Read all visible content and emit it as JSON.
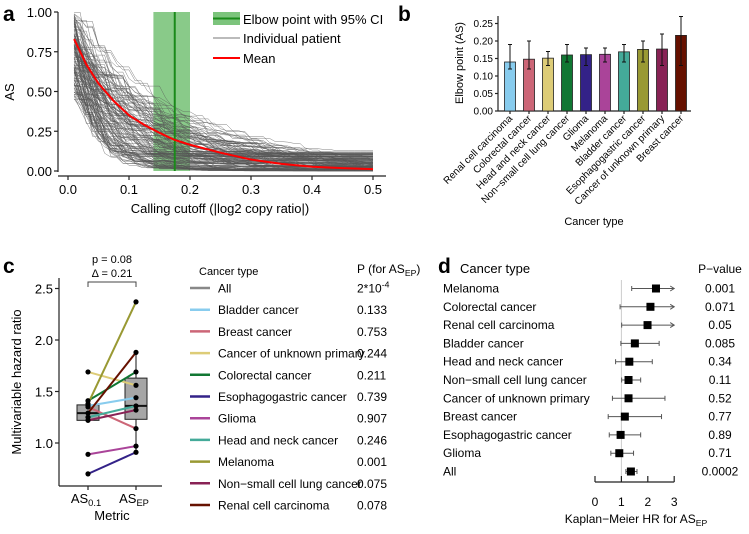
{
  "chart_data": [
    {
      "panel": "a",
      "type": "line",
      "ylabel": "AS",
      "xlabel": "Calling cutoff (|log2 copy ratio|)",
      "xlim": [
        0,
        0.5
      ],
      "ylim": [
        0,
        1
      ],
      "xticks": [
        "0.0",
        "0.1",
        "0.2",
        "0.3",
        "0.4",
        "0.5"
      ],
      "yticks": [
        "0.00",
        "0.25",
        "0.50",
        "0.75",
        "1.00"
      ],
      "legend": [
        "Elbow point with 95% CI",
        "Individual patient",
        "Mean"
      ],
      "legend_position": "top-right",
      "elbow": {
        "value": 0.175,
        "ci": [
          0.14,
          0.2
        ]
      },
      "mean": {
        "x": [
          0.01,
          0.03,
          0.05,
          0.075,
          0.1,
          0.125,
          0.15,
          0.175,
          0.2,
          0.25,
          0.3,
          0.35,
          0.4,
          0.45,
          0.5
        ],
        "y": [
          0.83,
          0.67,
          0.55,
          0.44,
          0.35,
          0.29,
          0.24,
          0.195,
          0.165,
          0.115,
          0.072,
          0.045,
          0.027,
          0.018,
          0.012
        ]
      },
      "colors": {
        "elbow": "#1a8a1a",
        "ci": "#7cc47c",
        "individual": "#555555",
        "mean": "#ff0000"
      }
    },
    {
      "panel": "b",
      "type": "bar",
      "ylabel": "Elbow point (AS)",
      "xlabel": "Cancer type",
      "ylim": [
        0,
        0.27
      ],
      "yticks": [
        "0.00",
        "0.05",
        "0.10",
        "0.15",
        "0.20",
        "0.25"
      ],
      "categories": [
        "Renal cell carcinoma",
        "Colorectal cancer",
        "Head and neck cancer",
        "Non−small cell lung cancer",
        "Glioma",
        "Melanoma",
        "Bladder cancer",
        "Esophagogastric cancer",
        "Cancer of unknown primary",
        "Breast cancer"
      ],
      "values": [
        0.14,
        0.148,
        0.151,
        0.16,
        0.161,
        0.162,
        0.169,
        0.176,
        0.177,
        0.216
      ],
      "err_low": [
        0.12,
        0.12,
        0.13,
        0.14,
        0.13,
        0.14,
        0.14,
        0.14,
        0.13,
        0.13
      ],
      "err_high": [
        0.19,
        0.2,
        0.17,
        0.19,
        0.18,
        0.18,
        0.19,
        0.2,
        0.22,
        0.27
      ],
      "colors": [
        "#88ccee",
        "#cc6677",
        "#ddcc77",
        "#117733",
        "#332288",
        "#aa4499",
        "#44aa99",
        "#999933",
        "#882255",
        "#661100"
      ]
    },
    {
      "panel": "c",
      "type": "box-paired",
      "ylabel": "Multivariable hazard ratio",
      "xlabel": "Metric",
      "categories": [
        {
          "base": "AS",
          "sub": "0.1"
        },
        {
          "base": "AS",
          "sub": "EP"
        }
      ],
      "ylim": [
        0.62,
        2.62
      ],
      "yticks": [
        "1.0",
        "1.5",
        "2.0",
        "2.5"
      ],
      "annotation": {
        "p": "p = 0.08",
        "delta": "Δ = 0.21"
      },
      "boxes": [
        {
          "median": 1.29,
          "q1": 1.22,
          "q3": 1.37,
          "whisker": [
            1.22,
            1.41
          ]
        },
        {
          "median": 1.36,
          "q1": 1.23,
          "q3": 1.63,
          "whisker": [
            0.91,
            1.88
          ]
        }
      ],
      "legend_title": "Cancer type",
      "p_header": {
        "base": "P (for AS",
        "sub": "EP",
        "close": ")"
      },
      "series": [
        {
          "name": "All",
          "color": "#888888",
          "values": [
            1.29,
            1.36
          ],
          "p": "2*10",
          "p_sup": "-4"
        },
        {
          "name": "Bladder cancer",
          "color": "#88ccee",
          "values": [
            1.36,
            1.44
          ],
          "p": "0.133"
        },
        {
          "name": "Breast cancer",
          "color": "#cc6677",
          "values": [
            1.35,
            1.14
          ],
          "p": "0.753"
        },
        {
          "name": "Cancer of unknown primary",
          "color": "#ddcc77",
          "values": [
            1.69,
            1.56
          ],
          "p": "0.244"
        },
        {
          "name": "Colorectal cancer",
          "color": "#117733",
          "values": [
            1.41,
            1.69
          ],
          "p": "0.211"
        },
        {
          "name": "Esophagogastric cancer",
          "color": "#332288",
          "values": [
            0.7,
            0.91
          ],
          "p": "0.739"
        },
        {
          "name": "Glioma",
          "color": "#aa4499",
          "values": [
            0.89,
            0.97
          ],
          "p": "0.907"
        },
        {
          "name": "Head and neck cancer",
          "color": "#44aa99",
          "values": [
            1.25,
            1.36
          ],
          "p": "0.246"
        },
        {
          "name": "Melanoma",
          "color": "#999933",
          "values": [
            1.38,
            2.37
          ],
          "p": "0.001"
        },
        {
          "name": "Non−small cell lung cancer",
          "color": "#882255",
          "values": [
            1.22,
            1.32
          ],
          "p": "0.075"
        },
        {
          "name": "Renal cell carcinoma",
          "color": "#661100",
          "values": [
            1.29,
            1.88
          ],
          "p": "0.078"
        }
      ]
    },
    {
      "panel": "d",
      "type": "forest",
      "title": "Cancer type",
      "p_title": "P−value",
      "xlabel": {
        "base": "Kaplan−Meier HR for AS",
        "sub": "EP"
      },
      "xlim": [
        0,
        3
      ],
      "xticks": [
        "0",
        "1",
        "2",
        "3"
      ],
      "rows": [
        {
          "name": "Melanoma",
          "hr": 2.31,
          "lo": 1.39,
          "hi": 3,
          "arrow": true,
          "p": "0.001"
        },
        {
          "name": "Colorectal cancer",
          "hr": 2.1,
          "lo": 0.95,
          "hi": 3,
          "arrow": true,
          "p": "0.071"
        },
        {
          "name": "Renal cell carcinoma",
          "hr": 1.99,
          "lo": 1.01,
          "hi": 3,
          "arrow": true,
          "p": "0.05"
        },
        {
          "name": "Bladder cancer",
          "hr": 1.51,
          "lo": 0.98,
          "hi": 2.43,
          "p": "0.085"
        },
        {
          "name": "Head and neck cancer",
          "hr": 1.3,
          "lo": 0.78,
          "hi": 2.17,
          "p": "0.34"
        },
        {
          "name": "Non−small cell lung cancer",
          "hr": 1.27,
          "lo": 1.01,
          "hi": 1.73,
          "p": "0.11"
        },
        {
          "name": "Cancer of unknown primary",
          "hr": 1.27,
          "lo": 0.66,
          "hi": 2.65,
          "p": "0.52"
        },
        {
          "name": "Breast cancer",
          "hr": 1.13,
          "lo": 0.5,
          "hi": 2.52,
          "p": "0.77"
        },
        {
          "name": "Esophagogastric cancer",
          "hr": 0.97,
          "lo": 0.54,
          "hi": 1.73,
          "p": "0.89"
        },
        {
          "name": "Glioma",
          "hr": 0.92,
          "lo": 0.6,
          "hi": 1.46,
          "p": "0.71"
        },
        {
          "name": "All",
          "hr": 1.36,
          "lo": 1.17,
          "hi": 1.59,
          "p": "0.0002"
        }
      ]
    }
  ],
  "panel_labels": [
    "a",
    "b",
    "c",
    "d"
  ]
}
